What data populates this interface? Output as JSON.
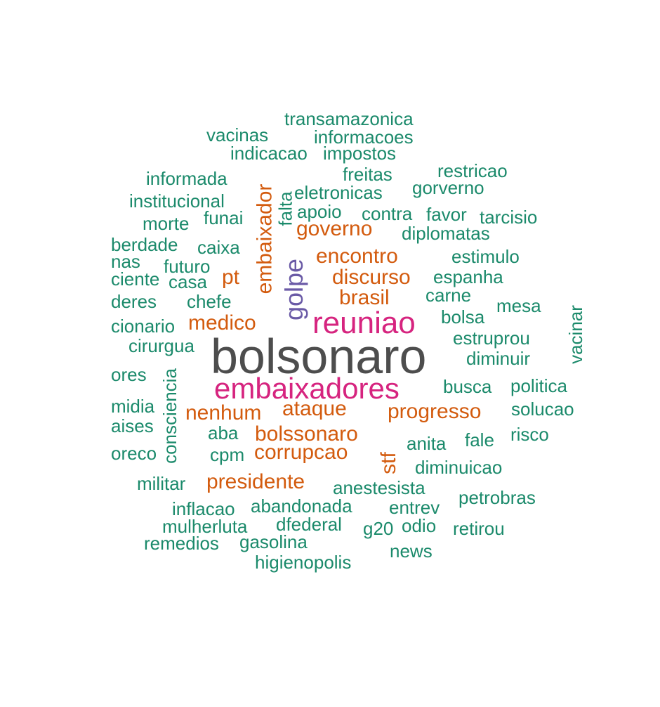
{
  "colors": {
    "gray": "#4d4d4d",
    "magenta": "#d6247f",
    "purple": "#6a5aa6",
    "orange": "#d35b0e",
    "green": "#1b8a6b"
  },
  "words": [
    {
      "text": "bolsonaro",
      "color": "gray"
    },
    {
      "text": "embaixadores",
      "color": "magenta"
    },
    {
      "text": "reuniao",
      "color": "magenta"
    },
    {
      "text": "golpe",
      "color": "purple"
    },
    {
      "text": "embaixador",
      "color": "orange"
    },
    {
      "text": "governo",
      "color": "orange"
    },
    {
      "text": "encontro",
      "color": "orange"
    },
    {
      "text": "discurso",
      "color": "orange"
    },
    {
      "text": "brasil",
      "color": "orange"
    },
    {
      "text": "pt",
      "color": "orange"
    },
    {
      "text": "medico",
      "color": "orange"
    },
    {
      "text": "nenhum",
      "color": "orange"
    },
    {
      "text": "ataque",
      "color": "orange"
    },
    {
      "text": "progresso",
      "color": "orange"
    },
    {
      "text": "bolssonaro",
      "color": "orange"
    },
    {
      "text": "corrupcao",
      "color": "orange"
    },
    {
      "text": "stf",
      "color": "orange"
    },
    {
      "text": "presidente",
      "color": "orange"
    },
    {
      "text": "transamazonica",
      "color": "green"
    },
    {
      "text": "vacinas",
      "color": "green"
    },
    {
      "text": "informacoes",
      "color": "green"
    },
    {
      "text": "indicacao",
      "color": "green"
    },
    {
      "text": "impostos",
      "color": "green"
    },
    {
      "text": "informada",
      "color": "green"
    },
    {
      "text": "freitas",
      "color": "green"
    },
    {
      "text": "restricao",
      "color": "green"
    },
    {
      "text": "institucional",
      "color": "green"
    },
    {
      "text": "eletronicas",
      "color": "green"
    },
    {
      "text": "gorverno",
      "color": "green"
    },
    {
      "text": "falta",
      "color": "green"
    },
    {
      "text": "funai",
      "color": "green"
    },
    {
      "text": "apoio",
      "color": "green"
    },
    {
      "text": "contra",
      "color": "green"
    },
    {
      "text": "favor",
      "color": "green"
    },
    {
      "text": "tarcisio",
      "color": "green"
    },
    {
      "text": "morte",
      "color": "green"
    },
    {
      "text": "diplomatas",
      "color": "green"
    },
    {
      "text": "berdade",
      "color": "green"
    },
    {
      "text": "caixa",
      "color": "green"
    },
    {
      "text": "estimulo",
      "color": "green"
    },
    {
      "text": "nas",
      "color": "green"
    },
    {
      "text": "futuro",
      "color": "green"
    },
    {
      "text": "ciente",
      "color": "green"
    },
    {
      "text": "casa",
      "color": "green"
    },
    {
      "text": "espanha",
      "color": "green"
    },
    {
      "text": "carne",
      "color": "green"
    },
    {
      "text": "deres",
      "color": "green"
    },
    {
      "text": "chefe",
      "color": "green"
    },
    {
      "text": "mesa",
      "color": "green"
    },
    {
      "text": "bolsa",
      "color": "green"
    },
    {
      "text": "cionario",
      "color": "green"
    },
    {
      "text": "vacinar",
      "color": "green"
    },
    {
      "text": "estruprou",
      "color": "green"
    },
    {
      "text": "cirurgua",
      "color": "green"
    },
    {
      "text": "diminuir",
      "color": "green"
    },
    {
      "text": "ores",
      "color": "green"
    },
    {
      "text": "consciencia",
      "color": "green"
    },
    {
      "text": "busca",
      "color": "green"
    },
    {
      "text": "politica",
      "color": "green"
    },
    {
      "text": "midia",
      "color": "green"
    },
    {
      "text": "solucao",
      "color": "green"
    },
    {
      "text": "aises",
      "color": "green"
    },
    {
      "text": "aba",
      "color": "green"
    },
    {
      "text": "risco",
      "color": "green"
    },
    {
      "text": "anita",
      "color": "green"
    },
    {
      "text": "fale",
      "color": "green"
    },
    {
      "text": "oreco",
      "color": "green"
    },
    {
      "text": "cpm",
      "color": "green"
    },
    {
      "text": "diminuicao",
      "color": "green"
    },
    {
      "text": "militar",
      "color": "green"
    },
    {
      "text": "anestesista",
      "color": "green"
    },
    {
      "text": "petrobras",
      "color": "green"
    },
    {
      "text": "inflacao",
      "color": "green"
    },
    {
      "text": "abandonada",
      "color": "green"
    },
    {
      "text": "entrev",
      "color": "green"
    },
    {
      "text": "mulherluta",
      "color": "green"
    },
    {
      "text": "dfederal",
      "color": "green"
    },
    {
      "text": "g20",
      "color": "green"
    },
    {
      "text": "odio",
      "color": "green"
    },
    {
      "text": "retirou",
      "color": "green"
    },
    {
      "text": "remedios",
      "color": "green"
    },
    {
      "text": "gasolina",
      "color": "green"
    },
    {
      "text": "news",
      "color": "green"
    },
    {
      "text": "higienopolis",
      "color": "green"
    }
  ]
}
